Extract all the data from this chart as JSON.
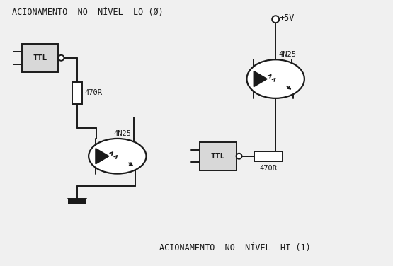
{
  "bg_color": "#f0f0f0",
  "line_color": "#1a1a1a",
  "title_left": "ACIONAMENTO  NO  NÍVEL  LO (Ø)",
  "title_right": "ACIONAMENTO  NO  NÍVEL  HI (1)",
  "label_ttl": "TTL",
  "label_4n25_left": "4N25",
  "label_4n25_right": "4N25",
  "label_res_left": "470R",
  "label_res_right": "470R",
  "label_5v": "+5V",
  "fig_width": 5.55,
  "fig_height": 3.76
}
